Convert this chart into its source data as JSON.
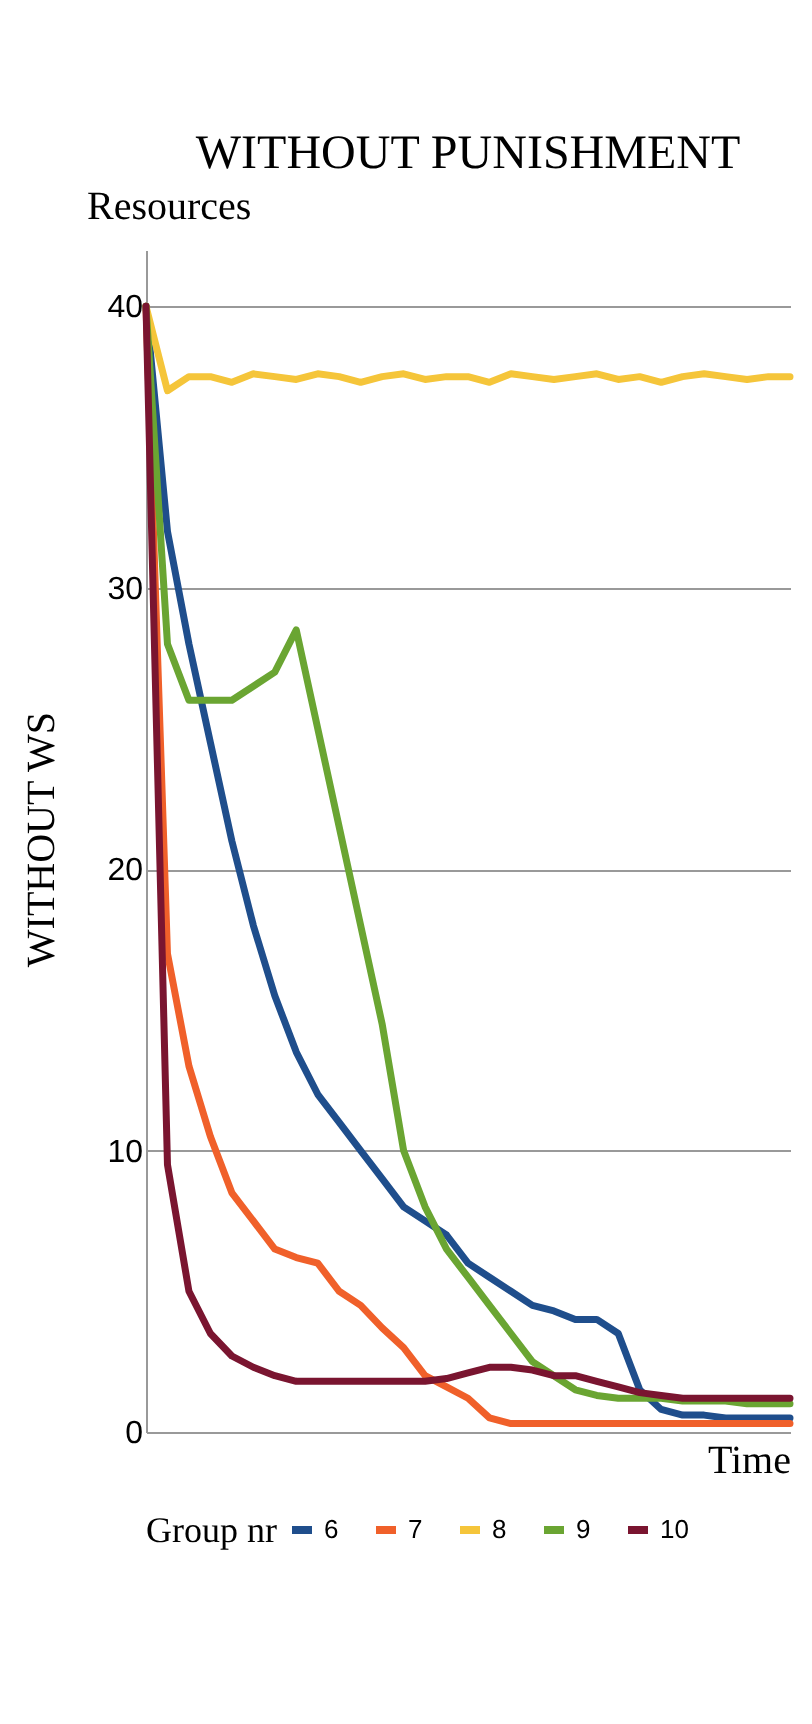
{
  "chart_data": {
    "type": "line",
    "title": "WITHOUT PUNISHMENT",
    "xlabel": "Time",
    "ylabel": "Resources",
    "legend_title": "Group nr",
    "annotations": [
      "WITHOUT WS"
    ],
    "categories": [
      null,
      null,
      null,
      null,
      null,
      null,
      null,
      null,
      null,
      null,
      null,
      null,
      null,
      null,
      null,
      null,
      null,
      null,
      null,
      null,
      null,
      null,
      null,
      null,
      null,
      null,
      null,
      null,
      null,
      null,
      null
    ],
    "series": [
      {
        "name": "6",
        "color": "#1f4e8c",
        "values": [
          40,
          32,
          28,
          24.5,
          21,
          18,
          15.5,
          13.5,
          12,
          11,
          10,
          9,
          8,
          7.5,
          7,
          6,
          5.5,
          5,
          4.5,
          4.3,
          4,
          4,
          3.5,
          1.5,
          0.8,
          0.6,
          0.6,
          0.5,
          0.5,
          0.5,
          0.5
        ]
      },
      {
        "name": "7",
        "color": "#f0602a",
        "values": [
          40,
          17,
          13,
          10.5,
          8.5,
          7.5,
          6.5,
          6.2,
          6,
          5,
          4.5,
          3.7,
          3,
          2,
          1.6,
          1.2,
          0.5,
          0.3,
          0.3,
          0.3,
          0.3,
          0.3,
          0.3,
          0.3,
          0.3,
          0.3,
          0.3,
          0.3,
          0.3,
          0.3,
          0.3
        ]
      },
      {
        "name": "8",
        "color": "#f5c53a",
        "values": [
          40,
          37,
          37.5,
          37.5,
          37.3,
          37.6,
          37.5,
          37.4,
          37.6,
          37.5,
          37.3,
          37.5,
          37.6,
          37.4,
          37.5,
          37.5,
          37.3,
          37.6,
          37.5,
          37.4,
          37.5,
          37.6,
          37.4,
          37.5,
          37.3,
          37.5,
          37.6,
          37.5,
          37.4,
          37.5,
          37.5
        ]
      },
      {
        "name": "9",
        "color": "#6aa532",
        "values": [
          40,
          28,
          26,
          26,
          26,
          26.5,
          27,
          28.5,
          25,
          21.5,
          18,
          14.5,
          10,
          8,
          6.5,
          5.5,
          4.5,
          3.5,
          2.5,
          2,
          1.5,
          1.3,
          1.2,
          1.2,
          1.2,
          1.1,
          1.1,
          1.1,
          1,
          1,
          1
        ]
      },
      {
        "name": "10",
        "color": "#7a1530",
        "values": [
          40,
          9.5,
          5,
          3.5,
          2.7,
          2.3,
          2,
          1.8,
          1.8,
          1.8,
          1.8,
          1.8,
          1.8,
          1.8,
          1.9,
          2.1,
          2.3,
          2.3,
          2.2,
          2,
          2,
          1.8,
          1.6,
          1.4,
          1.3,
          1.2,
          1.2,
          1.2,
          1.2,
          1.2,
          1.2
        ]
      }
    ],
    "ylim": [
      0,
      42
    ],
    "yticks": [
      0,
      10,
      20,
      30,
      40
    ],
    "grid": "y",
    "legend": "bottom"
  }
}
